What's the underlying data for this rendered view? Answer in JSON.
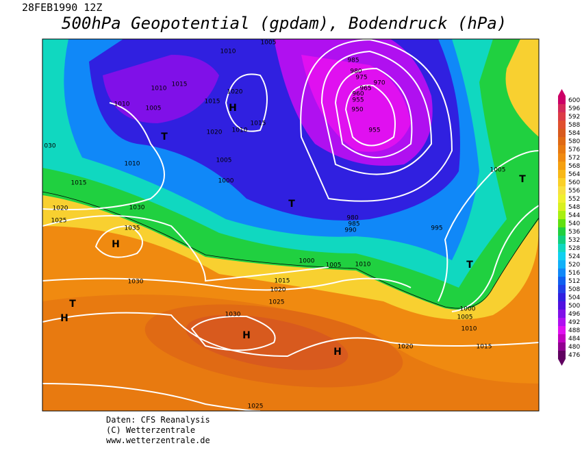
{
  "header": {
    "date": "28FEB1990 12Z",
    "title": "500hPa Geopotential (gpdam), Bodendruck (hPa)"
  },
  "legend": {
    "levels": [
      600,
      596,
      592,
      588,
      584,
      580,
      576,
      572,
      568,
      564,
      560,
      556,
      552,
      548,
      544,
      540,
      536,
      532,
      528,
      524,
      520,
      516,
      512,
      508,
      504,
      500,
      496,
      492,
      488,
      484,
      480,
      476
    ],
    "colors": [
      "#cc0066",
      "#d42a5a",
      "#dc3c46",
      "#e0502e",
      "#d85a1e",
      "#e06a14",
      "#e87a10",
      "#f08a10",
      "#f5a010",
      "#f8b818",
      "#fad028",
      "#f8e040",
      "#f0f030",
      "#d8f020",
      "#a8f010",
      "#60e010",
      "#20d040",
      "#10d080",
      "#10d8c0",
      "#10d0f0",
      "#10b0f8",
      "#1088f8",
      "#1060f0",
      "#2040e8",
      "#3020e0",
      "#5010e0",
      "#8010e8",
      "#b010f0",
      "#e010f0",
      "#c000c0",
      "#900090",
      "#600060"
    ]
  },
  "isobar_labels": [
    "1005",
    "1010",
    "985",
    "980",
    "975",
    "970",
    "965",
    "960",
    "955",
    "950",
    "955",
    "1010",
    "1015",
    "1010",
    "1005",
    "1020",
    "1015",
    "1015",
    "1010",
    "1020",
    "030",
    "1010",
    "1005",
    "1000",
    "1015",
    "1005",
    "1020",
    "1030",
    "1025",
    "1035",
    "980",
    "985",
    "990",
    "995",
    "1000",
    "1005",
    "1010",
    "1030",
    "1015",
    "1020",
    "1025",
    "1030",
    "1000",
    "1005",
    "1010",
    "1015",
    "1020",
    "1025"
  ],
  "pressure_systems": [
    "T",
    "H",
    "T",
    "T",
    "H",
    "T",
    "T",
    "H",
    "H",
    "H"
  ],
  "footer": [
    "Daten: CFS Reanalysis",
    "(C) Wetterzentrale",
    "www.wetterzentrale.de"
  ]
}
